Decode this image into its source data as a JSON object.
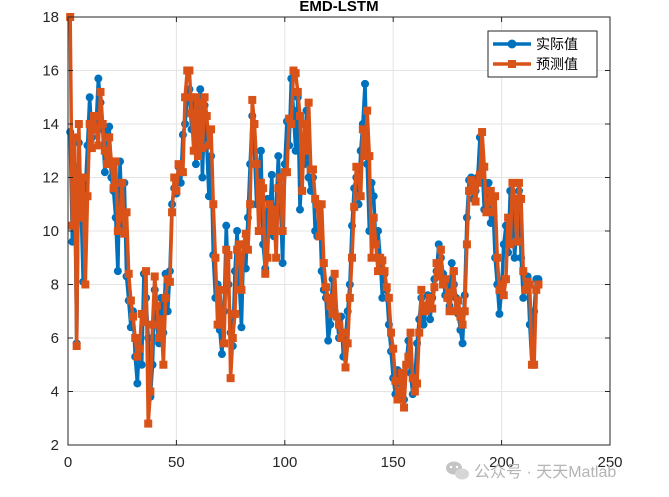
{
  "chart_data": {
    "type": "line",
    "title": "EMD-LSTM",
    "xlabel": "",
    "ylabel": "",
    "xlim": [
      0,
      250
    ],
    "ylim": [
      2,
      18
    ],
    "xticks": [
      0,
      50,
      100,
      150,
      200,
      250
    ],
    "yticks": [
      2,
      4,
      6,
      8,
      10,
      12,
      14,
      16,
      18
    ],
    "grid": "on",
    "legend": {
      "position": "top-right"
    },
    "x": [
      1,
      2,
      3,
      4,
      5,
      6,
      7,
      8,
      9,
      10,
      11,
      12,
      13,
      14,
      15,
      16,
      17,
      18,
      19,
      20,
      21,
      22,
      23,
      24,
      25,
      26,
      27,
      28,
      29,
      30,
      31,
      32,
      33,
      34,
      35,
      36,
      37,
      38,
      39,
      40,
      41,
      42,
      43,
      44,
      45,
      46,
      47,
      48,
      49,
      50,
      51,
      52,
      53,
      54,
      55,
      56,
      57,
      58,
      59,
      60,
      61,
      62,
      63,
      64,
      65,
      66,
      67,
      68,
      69,
      70,
      71,
      72,
      73,
      74,
      75,
      76,
      77,
      78,
      79,
      80,
      81,
      82,
      83,
      84,
      85,
      86,
      87,
      88,
      89,
      90,
      91,
      92,
      93,
      94,
      95,
      96,
      97,
      98,
      99,
      100,
      101,
      102,
      103,
      104,
      105,
      106,
      107,
      108,
      109,
      110,
      111,
      112,
      113,
      114,
      115,
      116,
      117,
      118,
      119,
      120,
      121,
      122,
      123,
      124,
      125,
      126,
      127,
      128,
      129,
      130,
      131,
      132,
      133,
      134,
      135,
      136,
      137,
      138,
      139,
      140,
      141,
      142,
      143,
      144,
      145,
      146,
      147,
      148,
      149,
      150,
      151,
      152,
      153,
      154,
      155,
      156,
      157,
      158,
      159,
      160,
      161,
      162,
      163,
      164,
      165,
      166,
      167,
      168,
      169,
      170,
      171,
      172,
      173,
      174,
      175,
      176,
      177,
      178,
      179,
      180,
      181,
      182,
      183,
      184,
      185,
      186,
      187,
      188,
      189,
      190,
      191,
      192,
      193,
      194,
      195,
      196,
      197,
      198,
      199,
      200,
      201,
      202,
      203,
      204,
      205,
      206,
      207,
      208,
      209,
      210,
      211,
      212,
      213,
      214,
      215,
      216,
      217
    ],
    "series": [
      {
        "name": "实际值",
        "color": "#0072BD",
        "marker": "circle",
        "values": [
          13.7,
          9.6,
          12.4,
          5.8,
          13.3,
          11.0,
          8.1,
          11.5,
          13.2,
          15.0,
          13.5,
          14.3,
          14.0,
          15.7,
          14.8,
          13.8,
          12.2,
          13.6,
          13.9,
          12.0,
          11.5,
          10.5,
          8.5,
          12.6,
          10.2,
          11.8,
          8.3,
          7.4,
          6.4,
          7.0,
          5.3,
          4.3,
          6.0,
          5.0,
          8.4,
          7.5,
          6.0,
          3.8,
          5.0,
          7.8,
          6.5,
          5.8,
          7.5,
          6.2,
          8.4,
          7.0,
          8.5,
          11.0,
          11.6,
          11.4,
          12.4,
          11.8,
          13.6,
          14.0,
          15.0,
          15.3,
          13.8,
          15.0,
          12.5,
          14.3,
          15.3,
          12.0,
          14.7,
          13.2,
          11.3,
          12.8,
          9.1,
          7.5,
          8.0,
          6.3,
          5.4,
          7.0,
          10.2,
          8.0,
          6.2,
          5.7,
          8.5,
          10.0,
          8.1,
          6.4,
          9.5,
          8.6,
          10.5,
          12.5,
          14.3,
          13.0,
          11.0,
          12.2,
          13.0,
          9.5,
          8.6,
          11.2,
          10.5,
          12.1,
          9.8,
          10.8,
          12.8,
          11.0,
          8.8,
          12.5,
          14.1,
          13.2,
          15.7,
          14.5,
          13.0,
          15.0,
          10.8,
          12.5,
          12.5,
          14.5,
          12.0,
          11.5,
          12.0,
          10.0,
          9.8,
          11.0,
          8.5,
          7.8,
          7.5,
          5.9,
          6.5,
          8.2,
          7.0,
          6.8,
          6.0,
          6.8,
          5.3,
          6.0,
          7.0,
          8.0,
          10.2,
          11.6,
          12.0,
          11.0,
          13.0,
          14.0,
          15.5,
          12.5,
          10.0,
          11.8,
          11.3,
          9.5,
          10.0,
          9.0,
          7.5,
          8.4,
          7.8,
          6.5,
          5.5,
          4.5,
          3.9,
          4.8,
          4.3,
          4.0,
          3.7,
          5.0,
          5.9,
          4.7,
          3.9,
          4.5,
          5.8,
          6.7,
          7.5,
          6.5,
          7.0,
          7.6,
          6.7,
          7.5,
          8.2,
          8.5,
          9.5,
          9.0,
          8.4,
          7.6,
          8.0,
          7.2,
          8.8,
          8.0,
          7.5,
          6.9,
          6.3,
          5.8,
          7.6,
          10.5,
          11.9,
          12.0,
          11.2,
          11.5,
          12.0,
          13.5,
          12.5,
          10.8,
          11.2,
          11.8,
          10.3,
          11.0,
          9.0,
          8.0,
          6.9,
          7.8,
          9.5,
          10.2,
          9.2,
          11.5,
          11.0,
          9.0,
          10.2,
          11.5,
          9.0,
          7.5,
          8.0,
          8.3,
          6.5,
          5.0,
          7.0,
          8.2,
          8.2
        ]
      },
      {
        "name": "预测值",
        "color": "#D95319",
        "marker": "square",
        "values": [
          18.0,
          10.2,
          13.5,
          5.7,
          14.0,
          10.5,
          12.0,
          8.0,
          11.3,
          14.0,
          13.1,
          14.3,
          13.8,
          13.2,
          15.2,
          14.0,
          13.0,
          12.5,
          13.5,
          12.6,
          11.6,
          12.6,
          10.0,
          10.5,
          11.8,
          9.9,
          10.7,
          8.4,
          7.4,
          6.8,
          6.0,
          5.3,
          5.6,
          6.9,
          6.6,
          8.5,
          2.8,
          4.0,
          6.5,
          8.3,
          7.2,
          6.0,
          6.7,
          5.0,
          7.5,
          8.2,
          8.1,
          10.7,
          12.0,
          11.5,
          12.5,
          12.2,
          12.2,
          15.0,
          16.0,
          16.0,
          14.4,
          13.0,
          15.0,
          12.8,
          14.8,
          13.1,
          15.0,
          14.3,
          13.2,
          13.8,
          11.0,
          9.0,
          6.5,
          7.8,
          6.8,
          5.8,
          9.3,
          9.1,
          4.5,
          6.0,
          6.9,
          9.3,
          9.5,
          7.8,
          9.5,
          9.9,
          9.3,
          11.0,
          14.9,
          14.0,
          12.5,
          10.0,
          11.8,
          11.6,
          8.4,
          9.0,
          11.0,
          10.0,
          10.8,
          9.0,
          11.6,
          12.0,
          10.0,
          12.2,
          12.2,
          14.2,
          14.0,
          16.0,
          15.9,
          15.2,
          14.3,
          11.5,
          14.0,
          13.0,
          14.8,
          12.3,
          12.3,
          11.2,
          11.0,
          9.8,
          11.0,
          8.8,
          7.9,
          7.5,
          7.2,
          6.9,
          8.4,
          6.8,
          6.5,
          6.0,
          6.2,
          4.9,
          5.8,
          7.5,
          9.0,
          10.9,
          12.4,
          12.0,
          11.3,
          13.8,
          12.8,
          14.5,
          12.8,
          9.0,
          10.5,
          9.5,
          8.5,
          9.0,
          8.9,
          8.5,
          7.9,
          7.5,
          6.2,
          5.6,
          4.4,
          3.7,
          4.0,
          4.7,
          3.4,
          5.0,
          5.3,
          6.2,
          4.5,
          4.0,
          4.3,
          6.2,
          7.8,
          7.1,
          7.0,
          7.2,
          7.5,
          7.1,
          7.9,
          8.8,
          8.3,
          9.3,
          8.0,
          8.2,
          7.5,
          7.0,
          7.7,
          8.5,
          7.0,
          7.4,
          6.8,
          6.5,
          7.0,
          9.5,
          11.5,
          11.9,
          11.6,
          11.1,
          11.8,
          12.1,
          13.7,
          12.4,
          10.7,
          11.1,
          11.5,
          10.7,
          11.3,
          9.0,
          7.8,
          8.0,
          7.6,
          8.2,
          10.5,
          9.5,
          11.8,
          11.2,
          9.6,
          11.8,
          11.2,
          8.5,
          7.8,
          8.1,
          8.0,
          5.0,
          5.0,
          7.8,
          8.0
        ]
      }
    ]
  },
  "watermark": {
    "icon": "wechat-icon",
    "text": "公众号 · 天天Matlab"
  }
}
